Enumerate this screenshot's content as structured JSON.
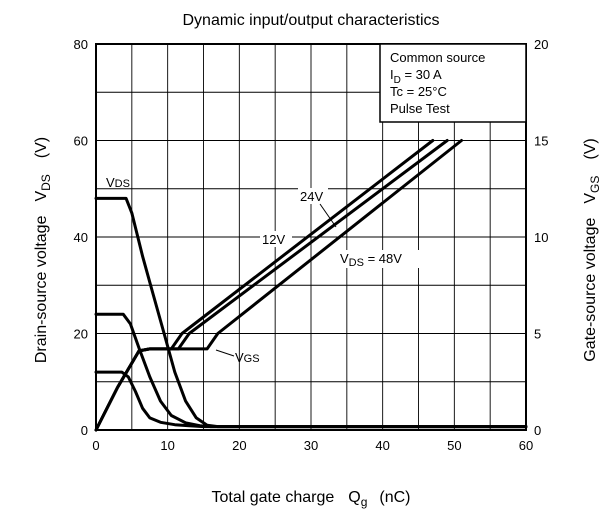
{
  "chart_data": {
    "type": "line",
    "title": "Dynamic input/output characteristics",
    "xlabel": {
      "main": "Total gate charge",
      "sym": "Q",
      "sub": "g",
      "unit": "(nC)"
    },
    "ylabel_left": {
      "main": "Drain-source voltage",
      "sym": "V",
      "sub": "DS",
      "unit": "(V)"
    },
    "ylabel_right": {
      "main": "Gate-source voltage",
      "sym": "V",
      "sub": "GS",
      "unit": "(V)"
    },
    "xlim": [
      0,
      60
    ],
    "ylim_left": [
      0,
      80
    ],
    "ylim_right": [
      0,
      20
    ],
    "x_ticks": [
      "0",
      "10",
      "20",
      "30",
      "40",
      "50",
      "60"
    ],
    "y_left_ticks": [
      "0",
      "20",
      "40",
      "60",
      "80"
    ],
    "y_right_ticks": [
      "0",
      "5",
      "10",
      "15",
      "20"
    ],
    "grid": true,
    "legend_box": {
      "line1": "Common source",
      "line2_sym": "I",
      "line2_sub": "D",
      "line2_rest": " = 30 A",
      "line3": "Tc = 25°C",
      "line4": "Pulse Test"
    },
    "annotations": {
      "vds_sym": "V",
      "vds_sub": "DS",
      "vgs_sym": "V",
      "vgs_sub": "GS",
      "v24": "24V",
      "v12": "12V",
      "v48_sym": "V",
      "v48_sub": "DS",
      "v48_rest": " = 48V"
    },
    "series": [
      {
        "axis": "left",
        "points": [
          [
            0,
            48
          ],
          [
            4.2,
            48
          ],
          [
            5,
            45
          ],
          [
            6.5,
            36
          ],
          [
            8,
            28
          ],
          [
            9.5,
            20
          ],
          [
            11,
            12
          ],
          [
            12.5,
            6
          ],
          [
            14,
            2.5
          ],
          [
            15.5,
            1
          ],
          [
            17,
            0.7
          ],
          [
            60,
            0.7
          ]
        ]
      },
      {
        "axis": "left",
        "points": [
          [
            0,
            24
          ],
          [
            3.8,
            24
          ],
          [
            4.8,
            22
          ],
          [
            6,
            17
          ],
          [
            7.5,
            11
          ],
          [
            9,
            6
          ],
          [
            10.5,
            3
          ],
          [
            12.5,
            1.5
          ],
          [
            14.5,
            0.9
          ],
          [
            16,
            0.7
          ],
          [
            60,
            0.7
          ]
        ]
      },
      {
        "axis": "left",
        "points": [
          [
            0,
            12
          ],
          [
            3.6,
            12
          ],
          [
            4.5,
            11
          ],
          [
            5.5,
            8
          ],
          [
            6.5,
            4.5
          ],
          [
            7.5,
            2.5
          ],
          [
            9,
            1.6
          ],
          [
            11,
            1.1
          ],
          [
            13,
            0.9
          ],
          [
            15,
            0.7
          ],
          [
            60,
            0.7
          ]
        ]
      },
      {
        "axis": "right",
        "points": [
          [
            0,
            0
          ],
          [
            3,
            2.2
          ],
          [
            6,
            4.1
          ],
          [
            7.5,
            4.2
          ],
          [
            10.5,
            4.2
          ],
          [
            12,
            5.0
          ],
          [
            47,
            15
          ]
        ]
      },
      {
        "axis": "right",
        "points": [
          [
            0,
            0
          ],
          [
            3,
            2.2
          ],
          [
            6,
            4.1
          ],
          [
            7.5,
            4.2
          ],
          [
            11.5,
            4.2
          ],
          [
            13,
            5.0
          ],
          [
            49,
            15
          ]
        ]
      },
      {
        "axis": "right",
        "points": [
          [
            0,
            0
          ],
          [
            3,
            2.2
          ],
          [
            6,
            4.1
          ],
          [
            7.5,
            4.2
          ],
          [
            15.5,
            4.2
          ],
          [
            17,
            5.0
          ],
          [
            51,
            15
          ]
        ]
      }
    ]
  }
}
